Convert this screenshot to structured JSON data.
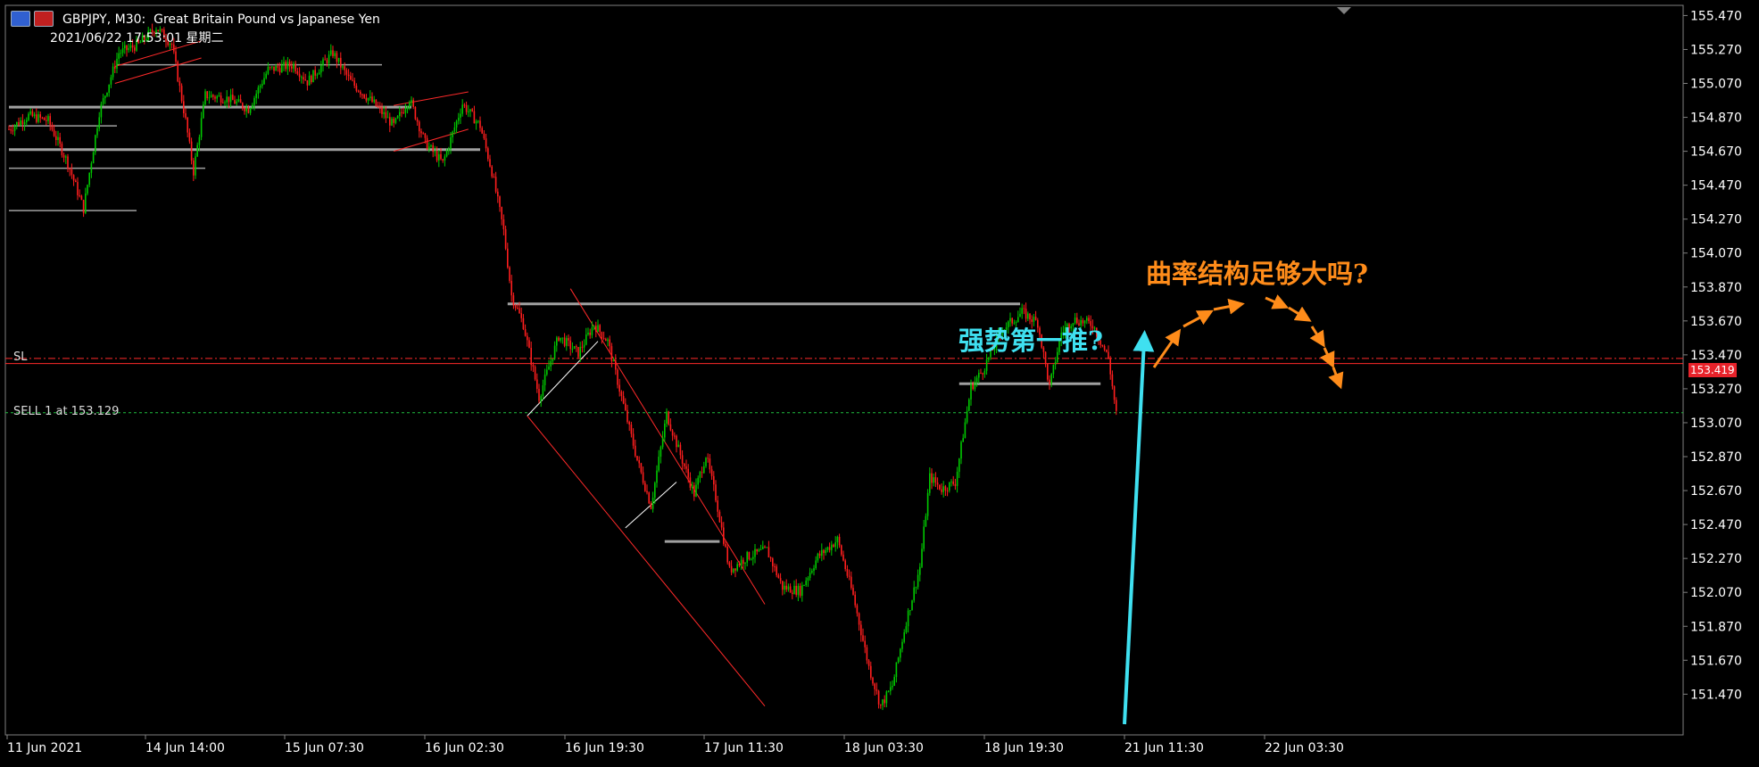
{
  "header": {
    "symbol_line": "GBPJPY, M30:  Great Britain Pound vs Japanese Yen",
    "time_line": "2021/06/22 17:53:01 星期二"
  },
  "labels": {
    "sl": "SL",
    "sell": "SELL 1 at 153.129",
    "current_price": "153.419"
  },
  "annotations": {
    "push": "强势第一推?",
    "question": "曲率结构足够大吗?"
  },
  "colors": {
    "bull": "#00c800",
    "bear": "#ff1e1e",
    "annotation_cyan": "#3fe0f0",
    "annotation_orange": "#ff8c1a",
    "sl_line": "#ff2a2a",
    "sell_line": "#1fbf3f",
    "level_line": "#a0a0a0"
  },
  "chart_data": {
    "type": "candlestick",
    "symbol": "GBPJPY",
    "timeframe": "M30",
    "y_ticks": [
      "155.470",
      "155.270",
      "155.070",
      "154.870",
      "154.670",
      "154.470",
      "154.270",
      "154.070",
      "153.870",
      "153.670",
      "153.470",
      "153.270",
      "153.070",
      "152.870",
      "152.670",
      "152.470",
      "152.270",
      "152.070",
      "151.870",
      "151.670",
      "151.470"
    ],
    "x_ticks": [
      "11 Jun 2021",
      "14 Jun 14:00",
      "15 Jun 07:30",
      "16 Jun 02:30",
      "16 Jun 19:30",
      "17 Jun 11:30",
      "18 Jun 03:30",
      "18 Jun 19:30",
      "21 Jun 11:30",
      "22 Jun 03:30"
    ],
    "ylim": [
      151.23,
      155.53
    ],
    "sl_price": 153.449,
    "sell_price": 153.129,
    "current_price": 153.419,
    "path": [
      [
        0,
        154.8
      ],
      [
        10,
        154.88
      ],
      [
        20,
        154.85
      ],
      [
        30,
        154.6
      ],
      [
        38,
        154.33
      ],
      [
        46,
        154.9
      ],
      [
        56,
        155.25
      ],
      [
        66,
        155.3
      ],
      [
        75,
        155.4
      ],
      [
        83,
        155.3
      ],
      [
        90,
        154.85
      ],
      [
        94,
        154.55
      ],
      [
        100,
        155.0
      ],
      [
        112,
        154.98
      ],
      [
        122,
        154.92
      ],
      [
        132,
        155.15
      ],
      [
        145,
        155.18
      ],
      [
        152,
        155.08
      ],
      [
        165,
        155.25
      ],
      [
        174,
        155.08
      ],
      [
        186,
        154.95
      ],
      [
        196,
        154.82
      ],
      [
        204,
        154.98
      ],
      [
        212,
        154.72
      ],
      [
        221,
        154.6
      ],
      [
        231,
        154.95
      ],
      [
        240,
        154.82
      ],
      [
        246,
        154.55
      ],
      [
        252,
        154.2
      ],
      [
        256,
        153.82
      ],
      [
        262,
        153.65
      ],
      [
        270,
        153.22
      ],
      [
        280,
        153.58
      ],
      [
        290,
        153.48
      ],
      [
        298,
        153.65
      ],
      [
        305,
        153.55
      ],
      [
        312,
        153.22
      ],
      [
        320,
        152.85
      ],
      [
        327,
        152.58
      ],
      [
        335,
        153.12
      ],
      [
        342,
        152.88
      ],
      [
        349,
        152.65
      ],
      [
        355,
        152.88
      ],
      [
        360,
        152.63
      ],
      [
        367,
        152.2
      ],
      [
        376,
        152.28
      ],
      [
        386,
        152.32
      ],
      [
        394,
        152.1
      ],
      [
        403,
        152.08
      ],
      [
        412,
        152.28
      ],
      [
        422,
        152.38
      ],
      [
        430,
        152.05
      ],
      [
        438,
        151.63
      ],
      [
        444,
        151.4
      ],
      [
        450,
        151.52
      ],
      [
        457,
        151.9
      ],
      [
        464,
        152.22
      ],
      [
        469,
        152.75
      ],
      [
        475,
        152.68
      ],
      [
        482,
        152.72
      ],
      [
        490,
        153.28
      ],
      [
        496,
        153.38
      ],
      [
        506,
        153.62
      ],
      [
        516,
        153.72
      ],
      [
        524,
        153.66
      ],
      [
        530,
        153.28
      ],
      [
        536,
        153.6
      ],
      [
        542,
        153.68
      ],
      [
        552,
        153.65
      ],
      [
        560,
        153.45
      ],
      [
        564,
        153.12
      ]
    ],
    "levels": [
      {
        "from": 0,
        "to": 65,
        "price": 154.32
      },
      {
        "from": 0,
        "to": 100,
        "price": 154.57
      },
      {
        "from": 0,
        "to": 55,
        "price": 154.82
      },
      {
        "from": 0,
        "to": 205,
        "price": 154.93
      },
      {
        "from": 55,
        "to": 190,
        "price": 155.18
      },
      {
        "from": 0,
        "to": 240,
        "price": 154.68
      },
      {
        "from": 254,
        "to": 515,
        "price": 153.77
      },
      {
        "from": 334,
        "to": 362,
        "price": 152.37
      },
      {
        "from": 484,
        "to": 556,
        "price": 153.3
      }
    ],
    "channels": [
      {
        "x1": 54,
        "y1": 155.17,
        "x2": 98,
        "y2": 155.32,
        "color": "#ff2a2a"
      },
      {
        "x1": 54,
        "y1": 155.07,
        "x2": 98,
        "y2": 155.22,
        "color": "#ff2a2a"
      },
      {
        "x1": 196,
        "y1": 154.94,
        "x2": 234,
        "y2": 155.02,
        "color": "#ff2a2a"
      },
      {
        "x1": 196,
        "y1": 154.67,
        "x2": 234,
        "y2": 154.8,
        "color": "#ff2a2a"
      },
      {
        "x1": 264,
        "y1": 153.11,
        "x2": 300,
        "y2": 153.55,
        "color": "#ffffff"
      },
      {
        "x1": 314,
        "y1": 152.45,
        "x2": 340,
        "y2": 152.72,
        "color": "#ffffff"
      },
      {
        "x1": 286,
        "y1": 153.86,
        "x2": 385,
        "y2": 152.0,
        "color": "#ff2a2a"
      },
      {
        "x1": 264,
        "y1": 153.11,
        "x2": 385,
        "y2": 151.4,
        "color": "#ff2a2a"
      }
    ]
  }
}
